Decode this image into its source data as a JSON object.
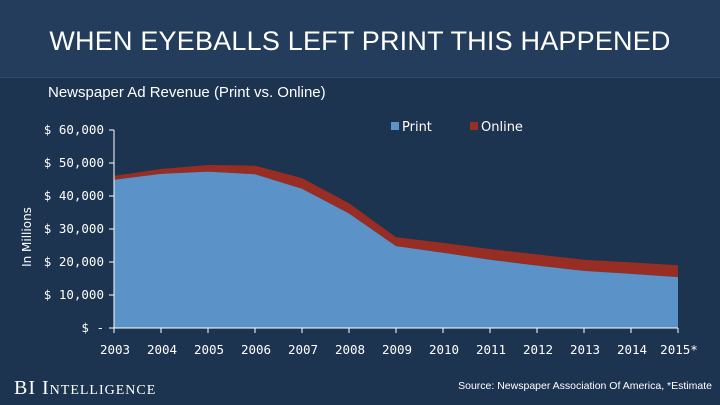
{
  "header": {
    "title": "WHEN EYEBALLS LEFT PRINT THIS HAPPENED"
  },
  "footer": {
    "brand_short": "BI",
    "brand_name": "Intelligence",
    "source": "Source: Newspaper Association Of America, *Estimate"
  },
  "colors": {
    "print": "#5b93c8",
    "online": "#982d23",
    "background": "#1d3451",
    "banner": "#243d5c"
  },
  "chart_data": {
    "type": "area",
    "stacked": true,
    "title": "Newspaper Ad Revenue (Print vs. Online)",
    "xlabel": "",
    "ylabel": "In Millions",
    "categories": [
      "2003",
      "2004",
      "2005",
      "2006",
      "2007",
      "2008",
      "2009",
      "2010",
      "2011",
      "2012",
      "2013",
      "2014",
      "2015*"
    ],
    "yticks": [
      "$ -",
      "$ 10,000",
      "$ 20,000",
      "$ 30,000",
      "$ 40,000",
      "$ 50,000",
      "$ 60,000"
    ],
    "ylim": [
      0,
      60000
    ],
    "legend_position": "top-right",
    "grid": false,
    "series": [
      {
        "name": "Print",
        "values": [
          44900,
          46700,
          47400,
          46600,
          42200,
          34700,
          24800,
          22800,
          20700,
          18900,
          17300,
          16400,
          15400
        ]
      },
      {
        "name": "Online",
        "values": [
          1200,
          1500,
          2000,
          2600,
          3200,
          3100,
          2700,
          3000,
          3200,
          3400,
          3400,
          3500,
          3600
        ]
      }
    ]
  }
}
